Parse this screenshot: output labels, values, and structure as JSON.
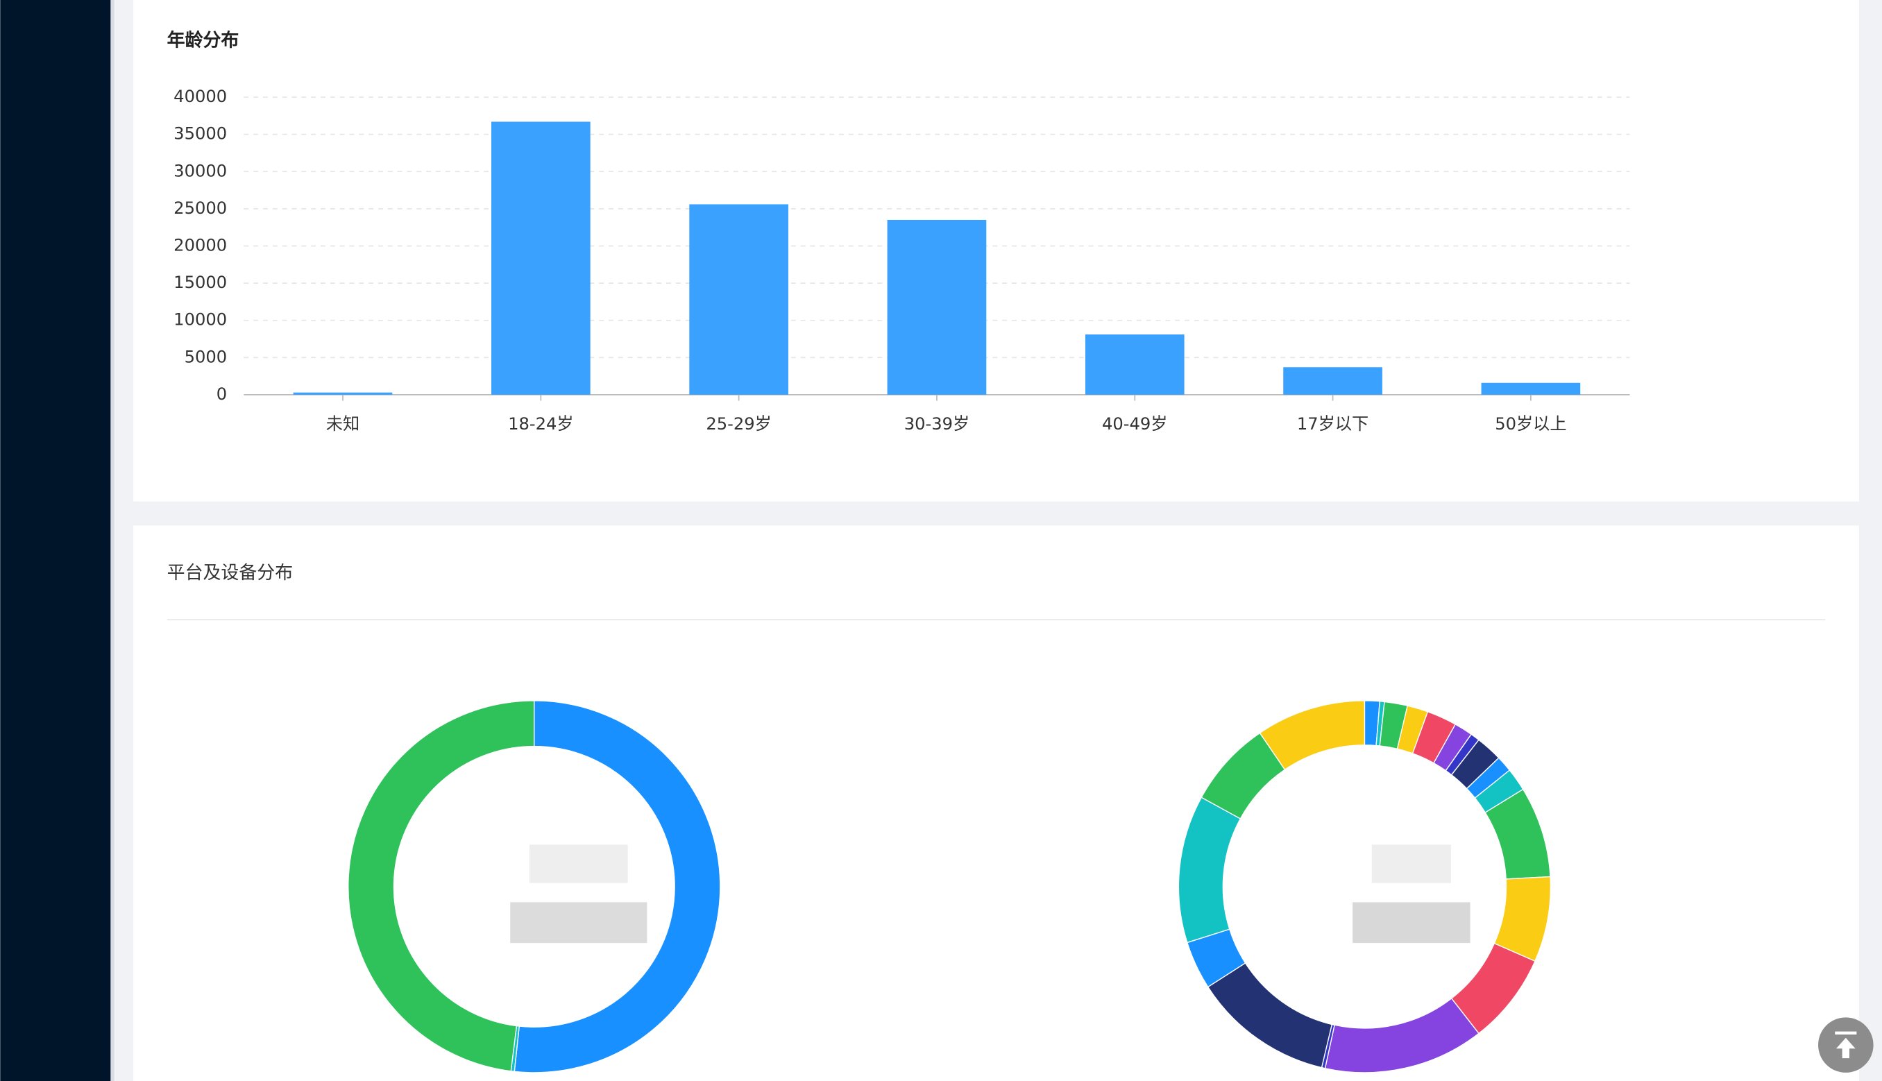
{
  "section_title": "平台及设备分布",
  "chart_data": [
    {
      "type": "bar",
      "title": "年龄分布",
      "categories": [
        "未知",
        "18-24岁",
        "25-29岁",
        "30-39岁",
        "40-49岁",
        "17岁以下",
        "50岁以上"
      ],
      "values": [
        300,
        36700,
        25600,
        23500,
        8100,
        3700,
        1600
      ],
      "color": "#3ba1ff",
      "ylim": [
        0,
        40000
      ],
      "yticks": [
        0,
        5000,
        10000,
        15000,
        20000,
        25000,
        30000,
        35000,
        40000
      ],
      "grid": true
    },
    {
      "type": "pie",
      "values": [
        51.7,
        0.3,
        48.0
      ],
      "colors": [
        "#1890ff",
        "#13c2c2",
        "#2fc25b"
      ]
    },
    {
      "type": "pie",
      "values": [
        1.3,
        0.4,
        2.0,
        1.8,
        2.6,
        1.6,
        0.8,
        2.3,
        1.4,
        2.0,
        7.9,
        7.4,
        7.9,
        13.9,
        0.3,
        12.2,
        4.2,
        12.8,
        7.5,
        9.5
      ],
      "colors": [
        "#1890ff",
        "#13c2c2",
        "#2fc25b",
        "#facc14",
        "#f04864",
        "#8543e0",
        "#3436c7",
        "#223273",
        "#1890ff",
        "#13c2c2",
        "#2fc25b",
        "#facc14",
        "#f04864",
        "#8543e0",
        "#3436c7",
        "#223273",
        "#1890ff",
        "#13c2c2",
        "#2fc25b",
        "#facc14"
      ]
    }
  ]
}
